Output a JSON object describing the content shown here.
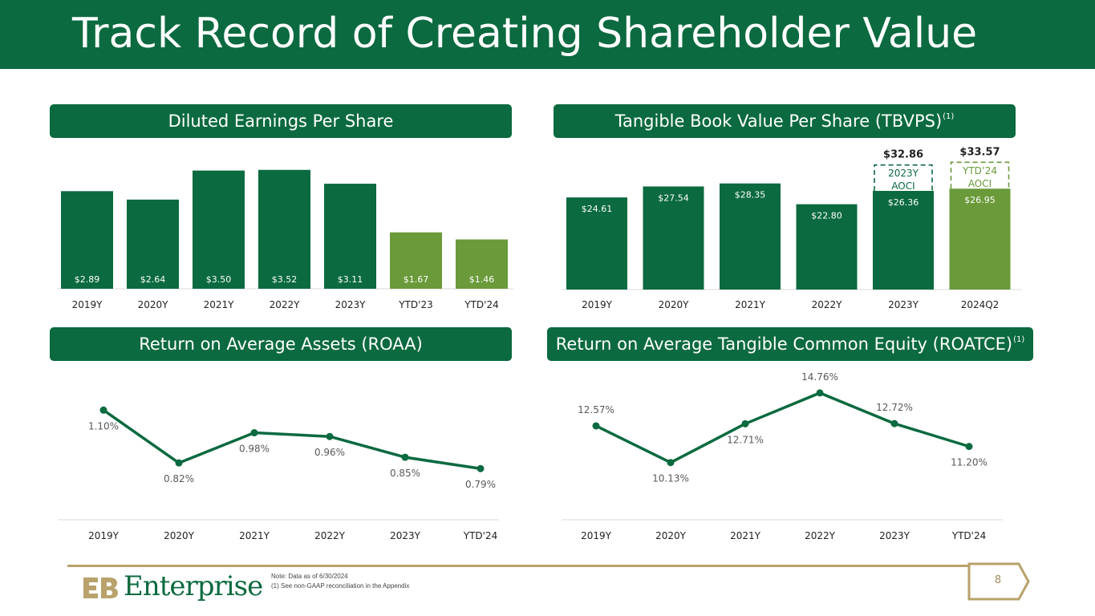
{
  "title": "Track Record of Creating Shareholder Value",
  "colors": {
    "primary_green": "#0b6a3f",
    "light_green": "#6a9a3a",
    "gold": "#b9a26b"
  },
  "panels": {
    "eps": {
      "header": "Diluted Earnings Per Share"
    },
    "tbvps": {
      "header": "Tangible Book Value Per Share (TBVPS)",
      "footnote_marker": "(1)"
    },
    "roaa": {
      "header": "Return on Average Assets (ROAA)"
    },
    "roatce": {
      "header": "Return on Average Tangible Common Equity (ROATCE)",
      "footnote_marker": "(1)"
    }
  },
  "chart_data": [
    {
      "id": "eps",
      "type": "bar",
      "categories": [
        "2019Y",
        "2020Y",
        "2021Y",
        "2022Y",
        "2023Y",
        "YTD'23",
        "YTD'24"
      ],
      "values": [
        2.89,
        2.64,
        3.5,
        3.52,
        3.11,
        1.67,
        1.46
      ],
      "labels": [
        "$2.89",
        "$2.64",
        "$3.50",
        "$3.52",
        "$3.11",
        "$1.67",
        "$1.46"
      ],
      "bar_colors": [
        "#0b6a3f",
        "#0b6a3f",
        "#0b6a3f",
        "#0b6a3f",
        "#0b6a3f",
        "#6a9a3a",
        "#6a9a3a"
      ],
      "ylim": [
        0,
        3.8
      ],
      "label_position": "inside-bottom"
    },
    {
      "id": "tbvps",
      "type": "bar",
      "categories": [
        "2019Y",
        "2020Y",
        "2021Y",
        "2022Y",
        "2023Y",
        "2024Q2"
      ],
      "values": [
        24.61,
        27.54,
        28.35,
        22.8,
        26.36,
        26.95
      ],
      "labels": [
        "$24.61",
        "$27.54",
        "$28.35",
        "$22.80",
        "$26.36",
        "$26.95"
      ],
      "bar_colors": [
        "#0b6a3f",
        "#0b6a3f",
        "#0b6a3f",
        "#0b6a3f",
        "#0b6a3f",
        "#6a9a3a"
      ],
      "ylim": [
        0,
        36
      ],
      "label_position": "inside-top",
      "aoci": [
        {
          "category": "2023Y",
          "total": 32.86,
          "total_label": "$32.86",
          "box_label": [
            "2023Y",
            "AOCI"
          ],
          "color": "#0b6a3f"
        },
        {
          "category": "2024Q2",
          "total": 33.57,
          "total_label": "$33.57",
          "box_label": [
            "YTD’24",
            "AOCI"
          ],
          "color": "#6a9a3a"
        }
      ]
    },
    {
      "id": "roaa",
      "type": "line",
      "categories": [
        "2019Y",
        "2020Y",
        "2021Y",
        "2022Y",
        "2023Y",
        "YTD'24"
      ],
      "values": [
        1.1,
        0.82,
        0.98,
        0.96,
        0.85,
        0.79
      ],
      "labels": [
        "1.10%",
        "0.82%",
        "0.98%",
        "0.96%",
        "0.85%",
        "0.79%"
      ],
      "label_sides": [
        "below",
        "below",
        "below",
        "below",
        "below",
        "below"
      ],
      "ylim": [
        0.4,
        1.25
      ]
    },
    {
      "id": "roatce",
      "type": "line",
      "categories": [
        "2019Y",
        "2020Y",
        "2021Y",
        "2022Y",
        "2023Y",
        "YTD'24"
      ],
      "values": [
        12.57,
        10.13,
        12.71,
        14.76,
        12.72,
        11.2
      ],
      "labels": [
        "12.57%",
        "10.13%",
        "12.71%",
        "14.76%",
        "12.72%",
        "11.20%"
      ],
      "label_sides": [
        "above",
        "below",
        "below",
        "above",
        "above",
        "below"
      ],
      "ylim": [
        7.5,
        15.5
      ]
    }
  ],
  "footer": {
    "logo_text": "Enterprise",
    "notes": [
      "Note: Data as of 6/30/2024",
      "(1)  See non-GAAP reconciliation in the Appendix"
    ],
    "page_number": "8"
  }
}
